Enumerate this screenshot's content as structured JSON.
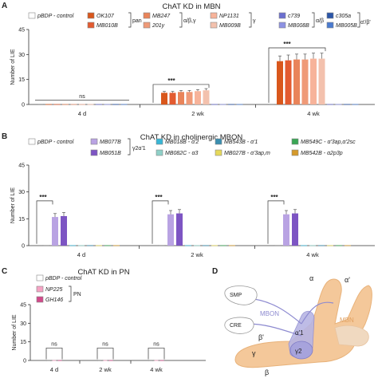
{
  "panels": [
    {
      "letter": "A",
      "title": "ChAT KD in MBN",
      "chart_data": {
        "type": "bar",
        "ylabel": "Number of LIE",
        "ylim": [
          0,
          45
        ],
        "yticks": [
          0,
          15,
          30,
          45
        ],
        "categories": [
          "4 d",
          "2 wk",
          "4 wk"
        ],
        "legend": [
          {
            "name": "pBDP - control",
            "color": "#ffffff"
          },
          {
            "name": "OK107",
            "color": "#d9571c"
          },
          {
            "name": "MB247",
            "color": "#e9845a"
          },
          {
            "name": "NP1131",
            "color": "#f7b39a"
          },
          {
            "name": "c739",
            "color": "#6b6fd0"
          },
          {
            "name": "c305a",
            "color": "#2b56a8"
          },
          {
            "name": "MB010B",
            "color": "#e35b30"
          },
          {
            "name": "201y",
            "color": "#ef9a78"
          },
          {
            "name": "MB009B",
            "color": "#f3c1ad"
          },
          {
            "name": "MB008B",
            "color": "#8d92e3"
          },
          {
            "name": "MB005B",
            "color": "#4a7bd0"
          }
        ],
        "groups": [
          {
            "label": "pan"
          },
          {
            "label": "α/β,γ"
          },
          {
            "label": "γ"
          },
          {
            "label": "α/β"
          },
          {
            "label": "α'/β'"
          }
        ],
        "series": [
          {
            "name": "pBDP - control",
            "values": [
              0.2,
              0.2,
              0.2
            ]
          },
          {
            "name": "OK107",
            "values": [
              0.2,
              7,
              26
            ]
          },
          {
            "name": "MB010B",
            "values": [
              0.2,
              7,
              26.5
            ]
          },
          {
            "name": "MB247",
            "values": [
              0.2,
              7.5,
              27
            ]
          },
          {
            "name": "201y",
            "values": [
              0.2,
              7.5,
              27
            ]
          },
          {
            "name": "NP1131",
            "values": [
              0.2,
              8,
              27.5
            ]
          },
          {
            "name": "MB009B",
            "values": [
              0.2,
              8.5,
              27.5
            ]
          },
          {
            "name": "c739",
            "values": [
              0.2,
              0.2,
              0.2
            ]
          },
          {
            "name": "MB008B",
            "values": [
              0.2,
              0.2,
              0.2
            ]
          },
          {
            "name": "c305a",
            "values": [
              0.2,
              0.2,
              0.2
            ]
          },
          {
            "name": "MB005B",
            "values": [
              0.2,
              0.2,
              0.2
            ]
          }
        ],
        "annotations": [
          "ns",
          "***",
          "***"
        ]
      }
    },
    {
      "letter": "B",
      "title": "ChAT KD in cholinergic MBON",
      "chart_data": {
        "type": "bar",
        "ylabel": "Number of LIE",
        "ylim": [
          0,
          45
        ],
        "yticks": [
          0,
          15,
          30,
          45
        ],
        "categories": [
          "4 d",
          "2 wk",
          "4 wk"
        ],
        "legend": [
          {
            "name": "pBDP - control",
            "color": "#ffffff"
          },
          {
            "name": "MB077B",
            "color": "#b9a3e3"
          },
          {
            "name": "MB051B",
            "color": "#7d55c3"
          },
          {
            "name": "MB018B - α'2",
            "color": "#38b6d6"
          },
          {
            "name": "MB082C - α3",
            "color": "#8fd0c8"
          },
          {
            "name": "MB543B - α'1",
            "color": "#3a8fb0"
          },
          {
            "name": "MB027B - α'3ap,m",
            "color": "#e6d95a"
          },
          {
            "name": "MB549C - α'3ap,α'2sc",
            "color": "#3aa655"
          },
          {
            "name": "MB542B - α2p3p",
            "color": "#d59a2b"
          }
        ],
        "group_label": "γ2α'1",
        "series": [
          {
            "name": "pBDP - control",
            "values": [
              0.2,
              0.2,
              0.2
            ]
          },
          {
            "name": "MB077B",
            "values": [
              16,
              17.5,
              17.5
            ]
          },
          {
            "name": "MB051B",
            "values": [
              16.5,
              18,
              18
            ]
          },
          {
            "name": "MB018B - α'2",
            "values": [
              0.2,
              0.2,
              0.2
            ]
          },
          {
            "name": "MB082C - α3",
            "values": [
              0.2,
              0.2,
              0.2
            ]
          },
          {
            "name": "MB543B - α'1",
            "values": [
              0.2,
              0.2,
              0.2
            ]
          },
          {
            "name": "MB027B - α'3ap,m",
            "values": [
              0.2,
              0.2,
              0.2
            ]
          },
          {
            "name": "MB549C - α'3ap,α'2sc",
            "values": [
              0.2,
              0.2,
              0.2
            ]
          },
          {
            "name": "MB542B - α2p3p",
            "values": [
              0.2,
              0.2,
              0.2
            ]
          }
        ],
        "annotations": [
          "***",
          "***",
          "***"
        ]
      }
    },
    {
      "letter": "C",
      "title": "ChAT KD in PN",
      "chart_data": {
        "type": "bar",
        "ylabel": "Number of LIE",
        "ylim": [
          0,
          45
        ],
        "yticks": [
          0,
          15,
          30,
          45
        ],
        "categories": [
          "4 d",
          "2 wk",
          "4 wk"
        ],
        "legend": [
          {
            "name": "pBDP - control",
            "color": "#ffffff"
          },
          {
            "name": "NP225",
            "color": "#f6a3c4"
          },
          {
            "name": "GH146",
            "color": "#d24a8a"
          }
        ],
        "group_label": "PN",
        "series": [
          {
            "name": "pBDP - control",
            "values": [
              0.2,
              0.2,
              0.2
            ]
          },
          {
            "name": "NP225",
            "values": [
              0.2,
              0.2,
              0.2
            ]
          },
          {
            "name": "GH146",
            "values": [
              0.2,
              0.2,
              0.2
            ]
          }
        ],
        "annotations": [
          "ns",
          "ns",
          "ns"
        ]
      }
    }
  ],
  "diagram": {
    "letter": "D",
    "labels": [
      "α",
      "α'",
      "SMP",
      "MBON",
      "CRE",
      "MBN",
      "β'",
      "α'1",
      "γ",
      "γ2",
      "β"
    ]
  }
}
